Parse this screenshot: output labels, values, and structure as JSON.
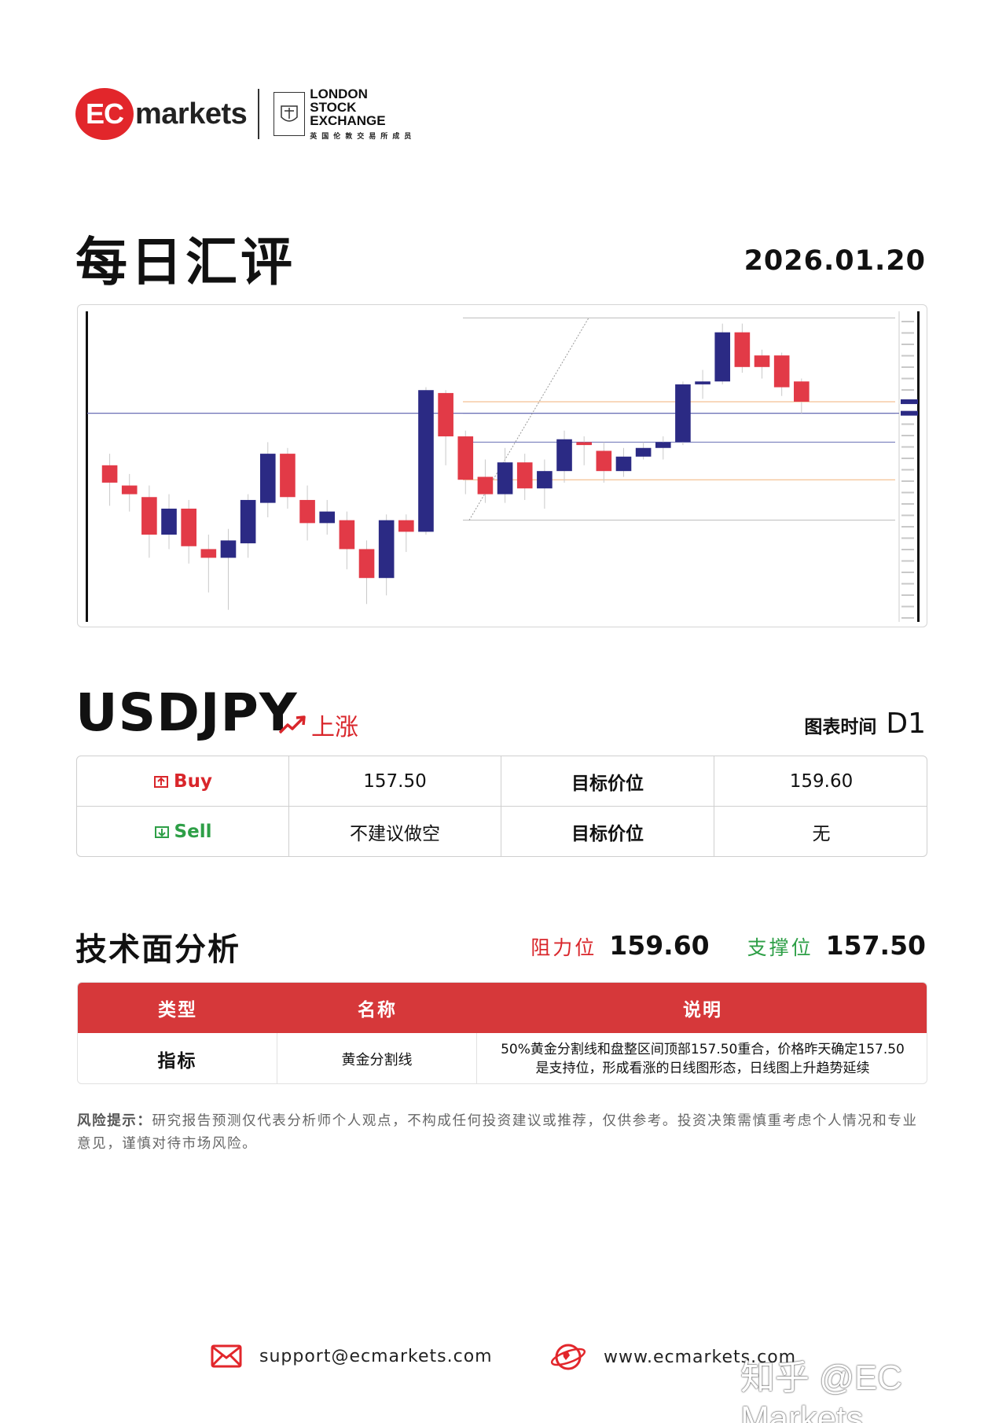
{
  "brand": {
    "logo_ec": "EC",
    "logo_markets": "markets",
    "lse_line1": "LONDON",
    "lse_line2": "STOCK",
    "lse_line3": "EXCHANGE",
    "lse_sub": "英国伦敦交易所成员"
  },
  "header": {
    "title": "每日汇评",
    "date": "2026.01.20"
  },
  "instrument": {
    "symbol": "USDJPY",
    "trend": "上涨",
    "chart_time_label": "图表时间",
    "chart_time_value": "D1"
  },
  "trade": {
    "buy_label": "Buy",
    "buy_price": "157.50",
    "buy_target_label": "目标价位",
    "buy_target": "159.60",
    "sell_label": "Sell",
    "sell_price": "不建议做空",
    "sell_target_label": "目标价位",
    "sell_target": "无"
  },
  "technical": {
    "title": "技术面分析",
    "resistance_label": "阻力位",
    "resistance": "159.60",
    "support_label": "支撑位",
    "support": "157.50",
    "headers": [
      "类型",
      "名称",
      "说明"
    ],
    "row": {
      "type": "指标",
      "name": "黄金分割线",
      "desc_line1": "50%黄金分割线和盘整区间顶部157.50重合，价格昨天确定157.50",
      "desc_line2": "是支持位，形成看涨的日线图形态，日线图上升趋势延续"
    }
  },
  "risk": {
    "label": "风险提示：",
    "text": "研究报告预测仅代表分析师个人观点，不构成任何投资建议或推荐，仅供参考。投资决策需慎重考虑个人情况和专业意见，谨慎对待市场风险。"
  },
  "footer": {
    "email": "support@ecmarkets.com",
    "website": "www.ecmarkets.com",
    "watermark": "知乎 @EC Markets"
  },
  "colors": {
    "brand_red": "#e2262b",
    "up_candle": "#2b2a84",
    "down_candle": "#e23a47",
    "sell_green": "#2e9f47",
    "table_header": "#d6383a"
  },
  "chart_data": {
    "type": "candlestick",
    "timeframe": "D1",
    "candles": [
      {
        "o": 0.62,
        "c": 0.56,
        "h": 0.66,
        "l": 0.48
      },
      {
        "o": 0.55,
        "c": 0.52,
        "h": 0.59,
        "l": 0.46
      },
      {
        "o": 0.51,
        "c": 0.38,
        "h": 0.55,
        "l": 0.3
      },
      {
        "o": 0.38,
        "c": 0.47,
        "h": 0.52,
        "l": 0.33
      },
      {
        "o": 0.47,
        "c": 0.34,
        "h": 0.5,
        "l": 0.28
      },
      {
        "o": 0.33,
        "c": 0.3,
        "h": 0.38,
        "l": 0.18
      },
      {
        "o": 0.3,
        "c": 0.36,
        "h": 0.4,
        "l": 0.12
      },
      {
        "o": 0.35,
        "c": 0.5,
        "h": 0.52,
        "l": 0.3
      },
      {
        "o": 0.49,
        "c": 0.66,
        "h": 0.7,
        "l": 0.44
      },
      {
        "o": 0.66,
        "c": 0.51,
        "h": 0.68,
        "l": 0.47
      },
      {
        "o": 0.5,
        "c": 0.42,
        "h": 0.55,
        "l": 0.36
      },
      {
        "o": 0.42,
        "c": 0.46,
        "h": 0.5,
        "l": 0.38
      },
      {
        "o": 0.43,
        "c": 0.33,
        "h": 0.46,
        "l": 0.26
      },
      {
        "o": 0.33,
        "c": 0.23,
        "h": 0.36,
        "l": 0.14
      },
      {
        "o": 0.23,
        "c": 0.43,
        "h": 0.45,
        "l": 0.17
      },
      {
        "o": 0.43,
        "c": 0.39,
        "h": 0.45,
        "l": 0.32
      },
      {
        "o": 0.39,
        "c": 0.88,
        "h": 0.89,
        "l": 0.38
      },
      {
        "o": 0.87,
        "c": 0.72,
        "h": 0.88,
        "l": 0.62
      },
      {
        "o": 0.72,
        "c": 0.57,
        "h": 0.74,
        "l": 0.52
      },
      {
        "o": 0.58,
        "c": 0.52,
        "h": 0.64,
        "l": 0.49
      },
      {
        "o": 0.52,
        "c": 0.63,
        "h": 0.68,
        "l": 0.49
      },
      {
        "o": 0.63,
        "c": 0.54,
        "h": 0.66,
        "l": 0.5
      },
      {
        "o": 0.54,
        "c": 0.6,
        "h": 0.64,
        "l": 0.47
      },
      {
        "o": 0.6,
        "c": 0.71,
        "h": 0.74,
        "l": 0.56
      },
      {
        "o": 0.7,
        "c": 0.69,
        "h": 0.72,
        "l": 0.62
      },
      {
        "o": 0.67,
        "c": 0.6,
        "h": 0.7,
        "l": 0.56
      },
      {
        "o": 0.6,
        "c": 0.65,
        "h": 0.68,
        "l": 0.58
      },
      {
        "o": 0.65,
        "c": 0.68,
        "h": 0.7,
        "l": 0.64
      },
      {
        "o": 0.68,
        "c": 0.7,
        "h": 0.72,
        "l": 0.64
      },
      {
        "o": 0.7,
        "c": 0.9,
        "h": 0.91,
        "l": 0.69
      },
      {
        "o": 0.9,
        "c": 0.91,
        "h": 0.95,
        "l": 0.85
      },
      {
        "o": 0.91,
        "c": 1.08,
        "h": 1.11,
        "l": 0.9
      },
      {
        "o": 1.08,
        "c": 0.96,
        "h": 1.11,
        "l": 0.94
      },
      {
        "o": 1.0,
        "c": 0.96,
        "h": 1.02,
        "l": 0.92
      },
      {
        "o": 1.0,
        "c": 0.89,
        "h": 1.01,
        "l": 0.86
      },
      {
        "o": 0.91,
        "c": 0.84,
        "h": 0.92,
        "l": 0.8
      }
    ],
    "fib_levels": [
      0.0,
      38.2,
      50.0,
      61.8,
      100.0
    ],
    "horizontal_lines": [
      0.8,
      0.61
    ]
  }
}
